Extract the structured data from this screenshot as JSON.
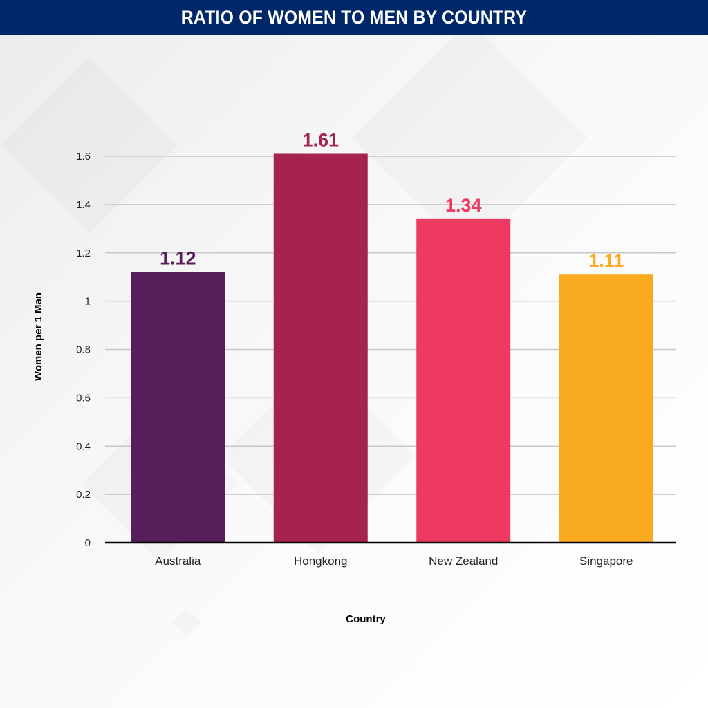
{
  "header": {
    "title": "RATIO OF WOMEN TO MEN BY COUNTRY"
  },
  "colors": {
    "header_bg": "#002868"
  },
  "chart_data": {
    "type": "bar",
    "title": "RATIO OF WOMEN TO MEN BY COUNTRY",
    "xlabel": "Country",
    "ylabel": "Women per 1 Man",
    "categories": [
      "Australia",
      "Hongkong",
      "New Zealand",
      "Singapore"
    ],
    "values": [
      1.12,
      1.61,
      1.34,
      1.11
    ],
    "value_labels": [
      "1.12",
      "1.61",
      "1.34",
      "1.11"
    ],
    "colors": [
      "#561e5a",
      "#a5234e",
      "#ee3a62",
      "#faaa1e"
    ],
    "ylim": [
      0,
      1.6
    ],
    "yticks": [
      0,
      0.2,
      0.4,
      0.6,
      0.8,
      1,
      1.2,
      1.4,
      1.6
    ],
    "ytick_labels": [
      "0",
      "0.2",
      "0.4",
      "0.6",
      "0.8",
      "1",
      "1.2",
      "1.4",
      "1.6"
    ],
    "grid": true,
    "legend": "none"
  }
}
